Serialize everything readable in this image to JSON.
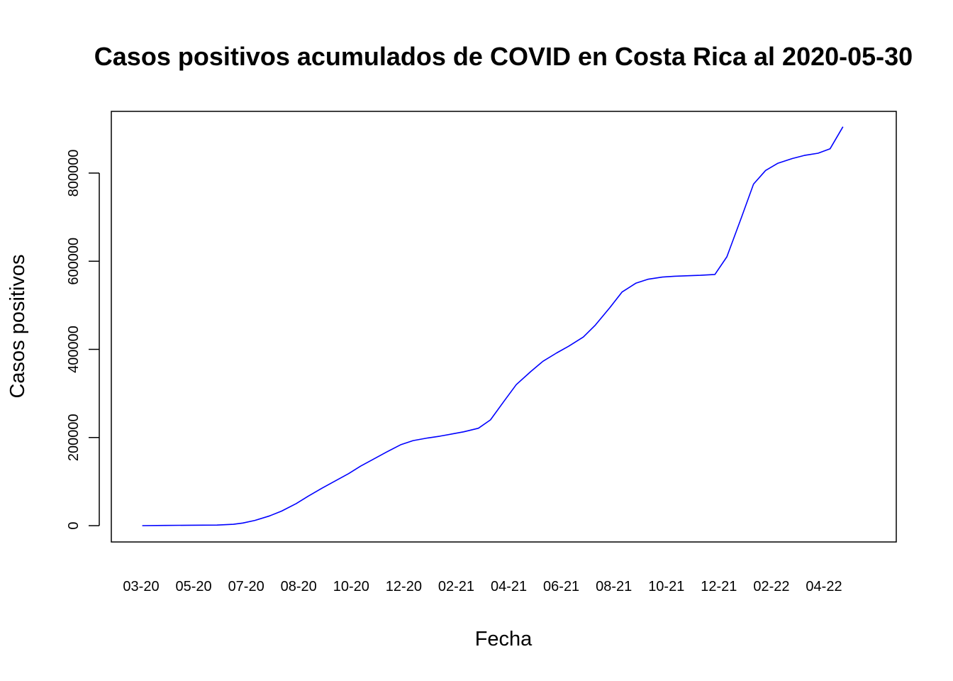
{
  "chart_data": {
    "type": "line",
    "title": "Casos positivos acumulados de COVID en Costa Rica al 2020-05-30",
    "xlabel": "Fecha",
    "ylabel": "Casos positivos",
    "x_tick_labels": [
      "03-20",
      "05-20",
      "07-20",
      "08-20",
      "10-20",
      "12-20",
      "02-21",
      "04-21",
      "06-21",
      "08-21",
      "10-21",
      "12-21",
      "02-22",
      "04-22"
    ],
    "y_ticks": [
      0,
      200000,
      400000,
      600000,
      800000
    ],
    "y_tick_labels": [
      "0",
      "200000",
      "400000",
      "600000",
      "800000"
    ],
    "ylim": [
      -37000,
      940000
    ],
    "xlim": [
      "2020-01-30",
      "2022-07-31"
    ],
    "grid": false,
    "series": [
      {
        "color": "#0000ff",
        "x": [
          "2020-03-06",
          "2020-04-01",
          "2020-05-01",
          "2020-06-01",
          "2020-06-20",
          "2020-07-01",
          "2020-07-15",
          "2020-08-01",
          "2020-08-15",
          "2020-09-01",
          "2020-09-15",
          "2020-10-01",
          "2020-10-15",
          "2020-11-01",
          "2020-11-15",
          "2020-12-01",
          "2020-12-15",
          "2021-01-01",
          "2021-01-15",
          "2021-02-01",
          "2021-02-15",
          "2021-03-01",
          "2021-03-15",
          "2021-04-01",
          "2021-04-15",
          "2021-05-01",
          "2021-05-15",
          "2021-06-01",
          "2021-06-15",
          "2021-07-01",
          "2021-07-15",
          "2021-08-01",
          "2021-08-15",
          "2021-09-01",
          "2021-09-15",
          "2021-10-01",
          "2021-10-15",
          "2021-11-01",
          "2021-11-15",
          "2021-12-01",
          "2021-12-15",
          "2022-01-01",
          "2022-01-15",
          "2022-02-01",
          "2022-02-15",
          "2022-03-01",
          "2022-03-15",
          "2022-04-01",
          "2022-04-15",
          "2022-05-01",
          "2022-05-15",
          "2022-05-30"
        ],
        "y": [
          0,
          500,
          1000,
          1300,
          3000,
          6000,
          12000,
          22000,
          33000,
          50000,
          67000,
          85000,
          100000,
          118000,
          135000,
          152000,
          167000,
          184000,
          193000,
          199000,
          203000,
          208000,
          213000,
          221000,
          240000,
          283000,
          320000,
          350000,
          373000,
          392000,
          407000,
          428000,
          455000,
          495000,
          530000,
          550000,
          559000,
          564000,
          566000,
          567000,
          568000,
          570000,
          610000,
          700000,
          775000,
          806000,
          822000,
          833000,
          840000,
          845000,
          855000,
          905000
        ]
      }
    ]
  }
}
